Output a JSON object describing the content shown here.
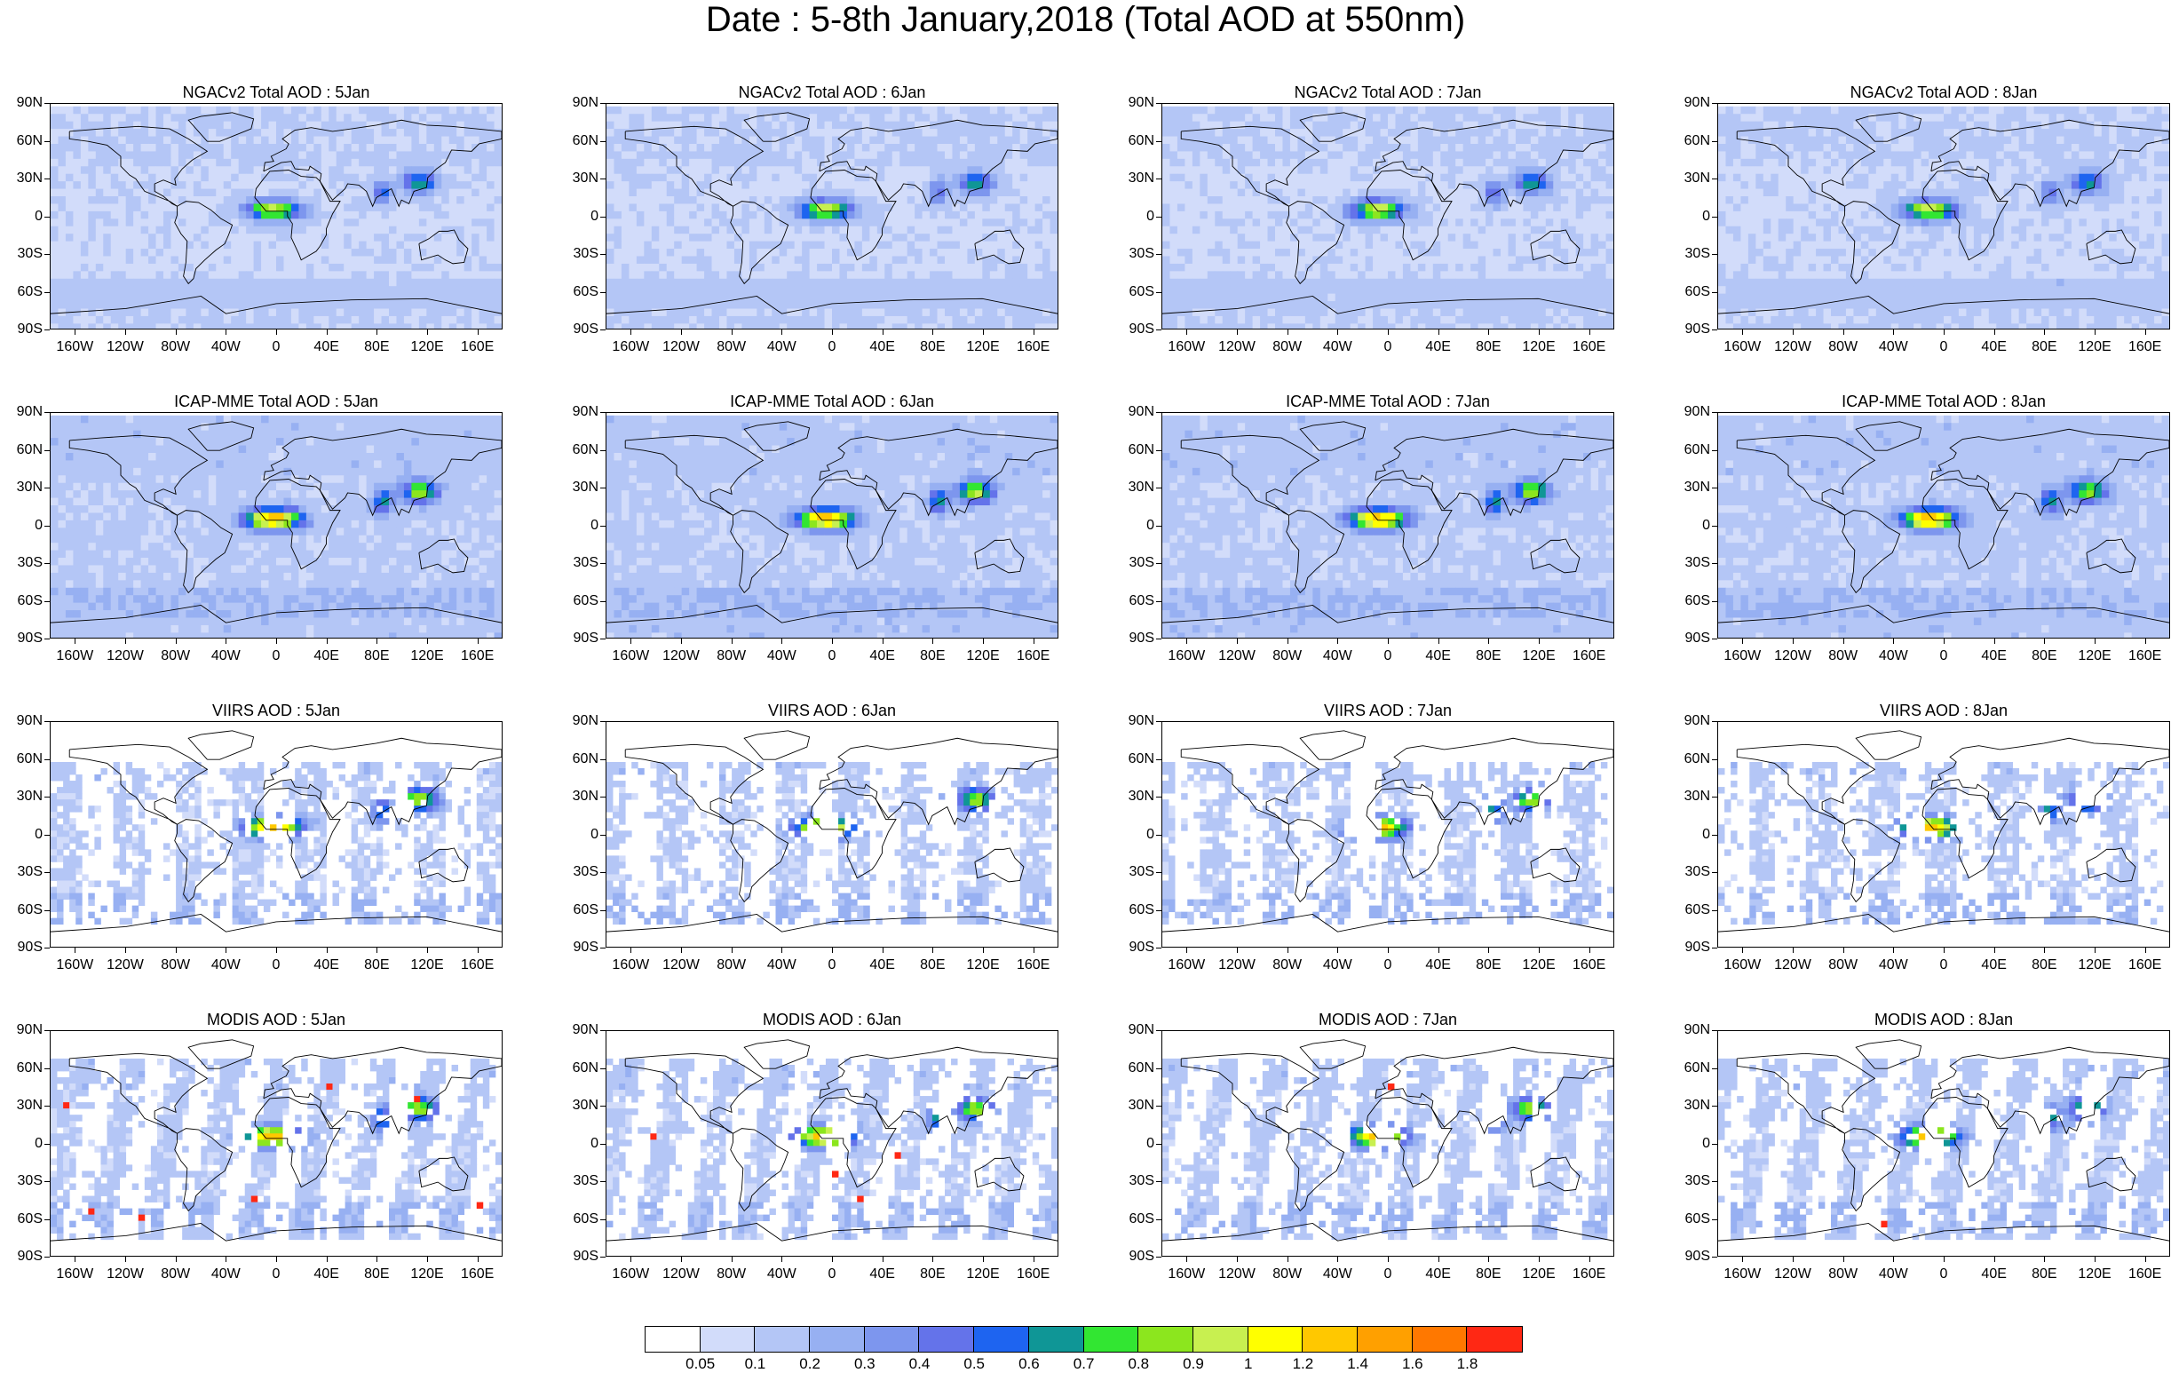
{
  "title": "Date : 5-8th January,2018 (Total AOD at 550nm)",
  "rows": [
    {
      "label_prefix": "NGACv2 Total AOD",
      "style": "model-low"
    },
    {
      "label_prefix": "ICAP-MME Total AOD",
      "style": "model-high"
    },
    {
      "label_prefix": "VIIRS AOD",
      "style": "sat-sparse"
    },
    {
      "label_prefix": "MODIS AOD",
      "style": "sat-swath"
    }
  ],
  "days": [
    "5Jan",
    "6Jan",
    "7Jan",
    "8Jan"
  ],
  "panels": [
    [
      "NGACv2 Total AOD : 5Jan",
      "NGACv2 Total AOD : 6Jan",
      "NGACv2 Total AOD : 7Jan",
      "NGACv2 Total AOD : 8Jan"
    ],
    [
      "ICAP-MME Total AOD : 5Jan",
      "ICAP-MME Total AOD : 6Jan",
      "ICAP-MME Total AOD : 7Jan",
      "ICAP-MME Total AOD : 8Jan"
    ],
    [
      "VIIRS AOD : 5Jan",
      "VIIRS AOD : 6Jan",
      "VIIRS AOD : 7Jan",
      "VIIRS AOD : 8Jan"
    ],
    [
      "MODIS AOD : 5Jan",
      "MODIS AOD : 6Jan",
      "MODIS AOD : 7Jan",
      "MODIS AOD : 8Jan"
    ]
  ],
  "lat_ticks": [
    "90N",
    "60N",
    "30N",
    "0",
    "30S",
    "60S",
    "90S"
  ],
  "lon_ticks": [
    "160W",
    "120W",
    "80W",
    "40W",
    "0",
    "40E",
    "80E",
    "120E",
    "160E"
  ],
  "lon_tick_values": [
    -160,
    -120,
    -80,
    -40,
    0,
    40,
    80,
    120,
    160
  ],
  "lat_tick_values": [
    90,
    60,
    30,
    0,
    -30,
    -60,
    -90
  ],
  "colorbar": {
    "labels": [
      "0.05",
      "0.1",
      "0.2",
      "0.3",
      "0.4",
      "0.5",
      "0.6",
      "0.7",
      "0.8",
      "0.9",
      "1",
      "1.2",
      "1.4",
      "1.6",
      "1.8"
    ],
    "colors": [
      "#ffffff",
      "#d2dcfa",
      "#b4c6f6",
      "#97b0f2",
      "#7d96ee",
      "#6473ea",
      "#1e64f0",
      "#0f9696",
      "#32e632",
      "#8ce61e",
      "#c8f050",
      "#ffff00",
      "#ffc800",
      "#ffa000",
      "#ff7800",
      "#ff2814"
    ]
  }
}
